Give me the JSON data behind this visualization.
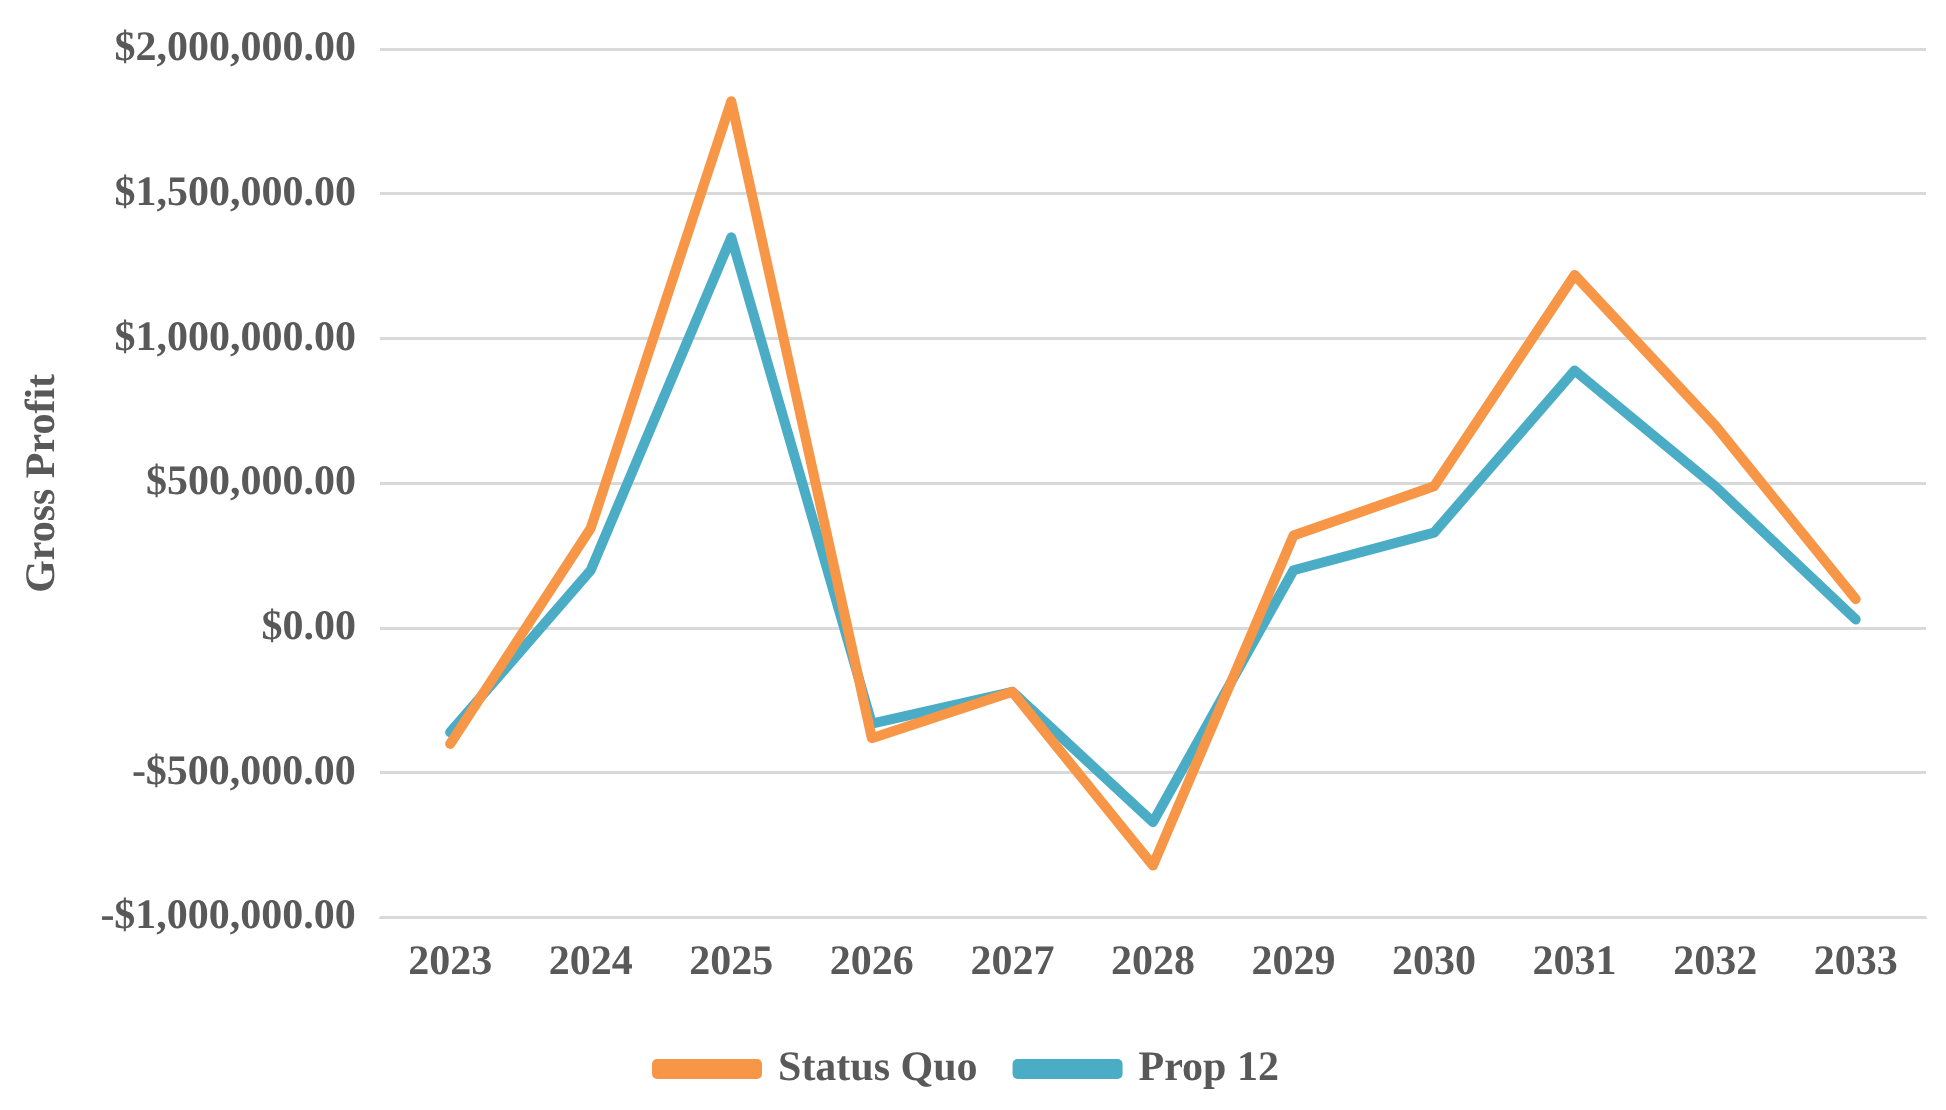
{
  "chart_data": {
    "type": "line",
    "ylabel": "Gross Profit",
    "categories": [
      "2023",
      "2024",
      "2025",
      "2026",
      "2027",
      "2028",
      "2029",
      "2030",
      "2031",
      "2032",
      "2033"
    ],
    "series": [
      {
        "name": "Status Quo",
        "color": "#f79646",
        "values": [
          -400000,
          345000,
          1820000,
          -380000,
          -220000,
          -820000,
          320000,
          490000,
          1220000,
          700000,
          100000
        ]
      },
      {
        "name": "Prop 12",
        "color": "#4bacc6",
        "values": [
          -360000,
          200000,
          1350000,
          -330000,
          -220000,
          -670000,
          200000,
          330000,
          890000,
          490000,
          30000
        ]
      }
    ],
    "ylim": [
      -1000000,
      2000000
    ],
    "yticks": [
      {
        "value": -1000000,
        "label": "-$1,000,000.00"
      },
      {
        "value": -500000,
        "label": "-$500,000.00"
      },
      {
        "value": 0,
        "label": "$0.00"
      },
      {
        "value": 500000,
        "label": "$500,000.00"
      },
      {
        "value": 1000000,
        "label": "$1,000,000.00"
      },
      {
        "value": 1500000,
        "label": "$1,500,000.00"
      },
      {
        "value": 2000000,
        "label": "$2,000,000.00"
      }
    ],
    "grid": "y",
    "legend": "bottom",
    "marker": "none",
    "line_style": "solid"
  }
}
